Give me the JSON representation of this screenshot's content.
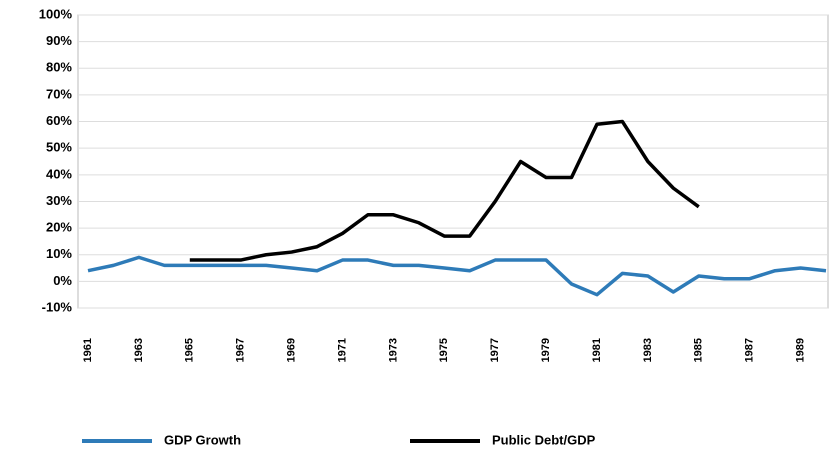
{
  "chart_data": {
    "type": "line",
    "categories": [
      "1961",
      null,
      "1963",
      null,
      "1965",
      null,
      "1967",
      null,
      "1969",
      null,
      "1971",
      null,
      "1973",
      null,
      "1975",
      null,
      "1977",
      null,
      "1979",
      null,
      "1981",
      null,
      "1983",
      null,
      "1985",
      null,
      "1987",
      null,
      "1989",
      null
    ],
    "series": [
      {
        "name": "GDP Growth",
        "color": "#2e7bb8",
        "values": [
          4,
          6,
          9,
          6,
          6,
          6,
          6,
          6,
          5,
          4,
          8,
          8,
          6,
          6,
          5,
          4,
          8,
          8,
          8,
          -1,
          -5,
          3,
          2,
          -4,
          2,
          1,
          1,
          4,
          5,
          4
        ]
      },
      {
        "name": "Public Debt/GDP",
        "color": "#000000",
        "values": [
          null,
          null,
          null,
          null,
          8,
          8,
          8,
          10,
          11,
          13,
          18,
          25,
          25,
          22,
          17,
          17,
          30,
          45,
          39,
          39,
          59,
          60,
          45,
          35,
          28,
          null,
          null,
          null,
          null,
          null
        ]
      }
    ],
    "ylim": [
      -10,
      100
    ],
    "yticks": [
      {
        "value": -10,
        "label": "-10%"
      },
      {
        "value": 0,
        "label": "0%"
      },
      {
        "value": 10,
        "label": "10%"
      },
      {
        "value": 20,
        "label": "20%"
      },
      {
        "value": 30,
        "label": "30%"
      },
      {
        "value": 40,
        "label": "40%"
      },
      {
        "value": 50,
        "label": "50%"
      },
      {
        "value": 60,
        "label": "60%"
      },
      {
        "value": 70,
        "label": "70%"
      },
      {
        "value": 80,
        "label": "80%"
      },
      {
        "value": 90,
        "label": "90%"
      },
      {
        "value": 100,
        "label": "100%"
      }
    ],
    "grid": true,
    "legend": "bottom"
  }
}
